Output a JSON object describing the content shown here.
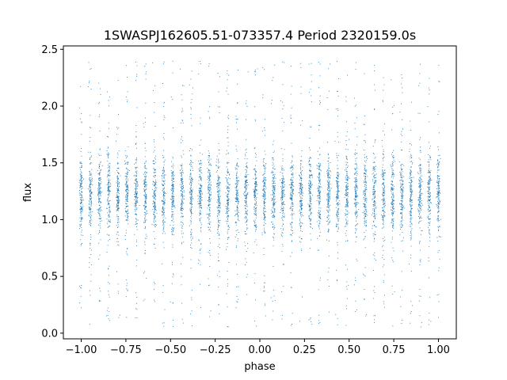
{
  "chart_data": {
    "type": "scatter",
    "title": "1SWASPJ162605.51-073357.4 Period 2320159.0s",
    "xlabel": "phase",
    "ylabel": "flux",
    "xlim": [
      -1.1,
      1.1
    ],
    "ylim": [
      -0.05,
      2.53
    ],
    "xticks": [
      -1.0,
      -0.75,
      -0.5,
      -0.25,
      0.0,
      0.25,
      0.5,
      0.75,
      1.0
    ],
    "xtick_labels": [
      "−1.00",
      "−0.75",
      "−0.50",
      "−0.25",
      "0.00",
      "0.25",
      "0.50",
      "0.75",
      "1.00"
    ],
    "yticks": [
      0.0,
      0.5,
      1.0,
      1.5,
      2.0,
      2.5
    ],
    "ytick_labels": [
      "0.0",
      "0.5",
      "1.0",
      "1.5",
      "2.0",
      "2.5"
    ],
    "grid": false,
    "marker_color": "#1f77b4",
    "series": [
      {
        "x_range": [
          -1.0,
          1.0
        ],
        "stripe_count": 40,
        "flux_center": 1.22,
        "flux_core_range": [
          0.85,
          1.55
        ],
        "flux_max": 2.4,
        "flux_min": 0.05
      }
    ]
  }
}
